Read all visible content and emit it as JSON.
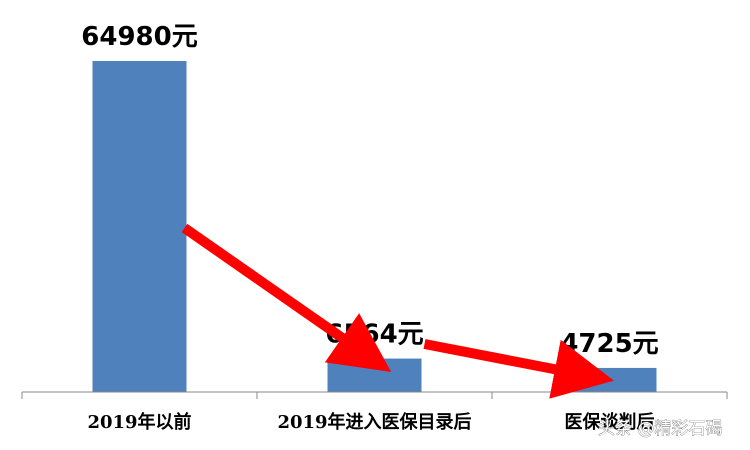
{
  "chart_data": {
    "type": "bar",
    "categories": [
      "2019年以前",
      "2019年进入医保目录后",
      "医保谈判后"
    ],
    "values": [
      64980,
      6564,
      4725
    ],
    "value_labels": [
      "64980元",
      "6564元",
      "4725元"
    ],
    "title": "",
    "xlabel": "",
    "ylabel": "",
    "ylim": [
      0,
      64980
    ],
    "grid": false,
    "legend": "none",
    "bar_color": "#4F81BD",
    "arrow_color": "#FF0000"
  },
  "watermark": "头条 @精彩石碣"
}
